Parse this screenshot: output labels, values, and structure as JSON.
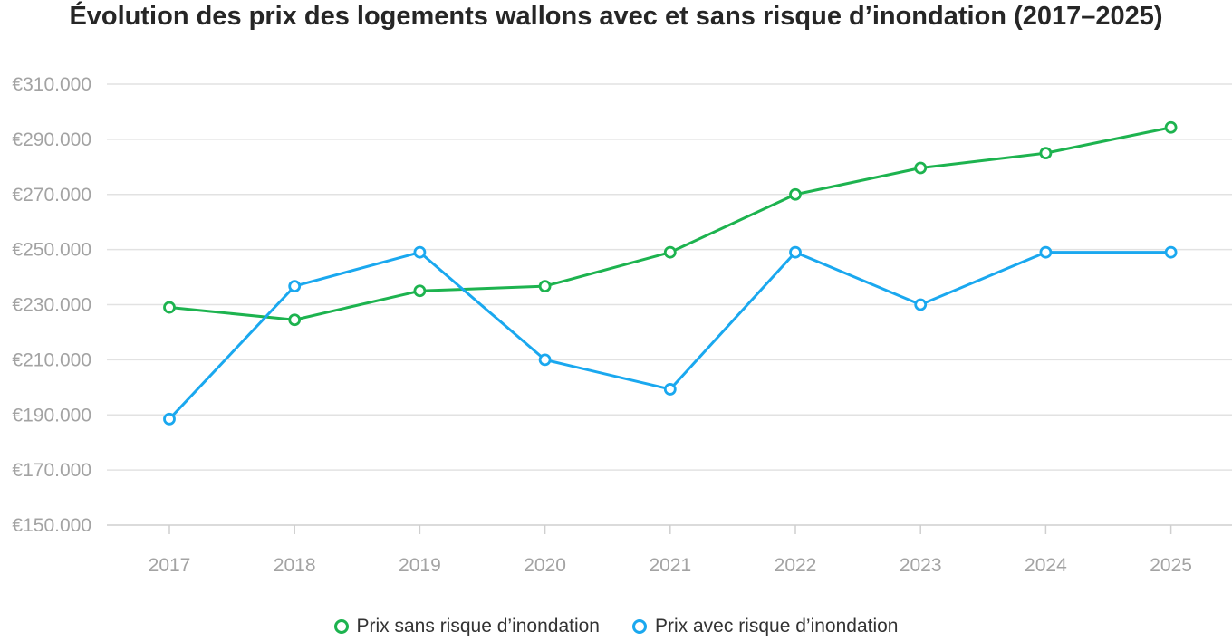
{
  "chart_data": {
    "type": "line",
    "title": "Évolution des prix des logements wallons avec et sans risque d’inondation (2017–2025)",
    "xlabel": "",
    "ylabel": "",
    "categories": [
      "2017",
      "2018",
      "2019",
      "2020",
      "2021",
      "2022",
      "2023",
      "2024",
      "2025"
    ],
    "ylim": [
      150000,
      310000
    ],
    "yticks": [
      150000,
      170000,
      190000,
      210000,
      230000,
      250000,
      270000,
      290000,
      310000
    ],
    "ytick_labels": [
      "€150.000",
      "€170.000",
      "€190.000",
      "€210.000",
      "€230.000",
      "€250.000",
      "€270.000",
      "€290.000",
      "€310.000"
    ],
    "grid": true,
    "legend_position": "bottom-center",
    "series": [
      {
        "name": "Prix sans risque d’inondation",
        "color": "#1db34f",
        "values": [
          229000,
          224500,
          235000,
          236700,
          249000,
          270000,
          279600,
          285000,
          294300
        ]
      },
      {
        "name": "Prix avec risque d’inondation",
        "color": "#1aa8ef",
        "values": [
          188500,
          236700,
          249000,
          210000,
          199300,
          249000,
          230000,
          249000,
          249000
        ]
      }
    ]
  }
}
